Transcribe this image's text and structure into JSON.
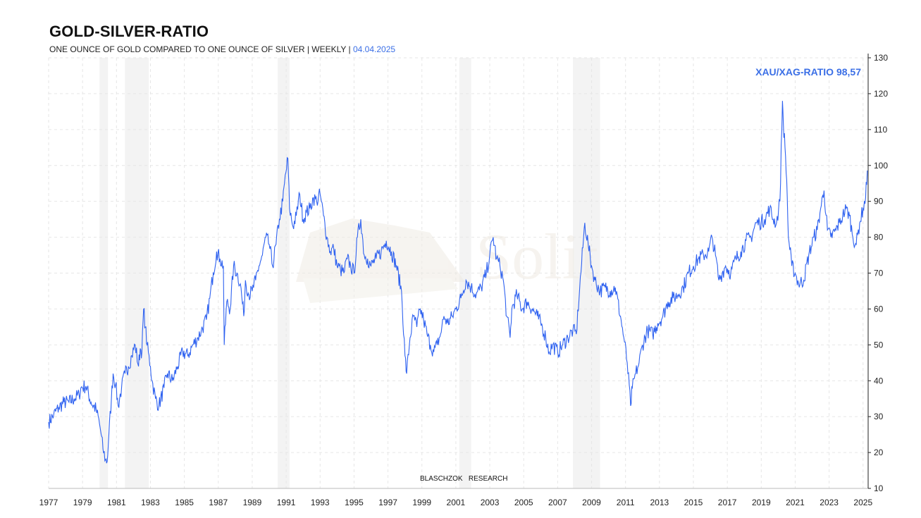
{
  "header": {
    "title": "GOLD-SILVER-RATIO",
    "subtitle": "ONE OUNCE OF GOLD COMPARED TO ONE OUNCE OF SILVER | WEEKLY |",
    "date": "04.04.2025"
  },
  "watermark": {
    "brand": "Solit",
    "credit": "BLASCHZOK   RESEARCH"
  },
  "colors": {
    "line": "#2f62f0",
    "label": "#3b6fe6",
    "shade": "#eeeeee",
    "grid": "#e6e6e6"
  },
  "chart_data": {
    "type": "line",
    "title": "GOLD-SILVER-RATIO",
    "current_label": "XAU/XAG-RATIO 98,57",
    "current_value": 98.57,
    "xlim": [
      1977.0,
      2025.3
    ],
    "ylim": [
      10,
      130
    ],
    "y_ticks": [
      130,
      120,
      110,
      100,
      90,
      80,
      70,
      60,
      50,
      40,
      30,
      20,
      10
    ],
    "x_ticks": [
      "1977",
      "1979",
      "1981",
      "1983",
      "1985",
      "1987",
      "1989",
      "1991",
      "1993",
      "1995",
      "1997",
      "1999",
      "2001",
      "2003",
      "2005",
      "2007",
      "2009",
      "2011",
      "2013",
      "2015",
      "2017",
      "2019",
      "2021",
      "2023",
      "2025"
    ],
    "grid": true,
    "y_axis_position": "right",
    "shaded_periods": [
      [
        1980.0,
        1980.5
      ],
      [
        1981.5,
        1982.9
      ],
      [
        1990.5,
        1991.2
      ],
      [
        2001.2,
        2001.9
      ],
      [
        2007.9,
        2009.5
      ]
    ],
    "series": [
      {
        "values": [
          [
            1977.0,
            28.5
          ],
          [
            1977.3,
            30.5
          ],
          [
            1977.6,
            32.5
          ],
          [
            1977.9,
            34
          ],
          [
            1978.2,
            34
          ],
          [
            1978.5,
            35
          ],
          [
            1978.8,
            36
          ],
          [
            1978.9,
            38
          ],
          [
            1979.2,
            38.5
          ],
          [
            1979.5,
            34
          ],
          [
            1979.8,
            32
          ],
          [
            1980.0,
            28
          ],
          [
            1980.1,
            25
          ],
          [
            1980.2,
            21
          ],
          [
            1980.35,
            18
          ],
          [
            1980.45,
            17.5
          ],
          [
            1980.55,
            25
          ],
          [
            1980.7,
            35
          ],
          [
            1980.8,
            42
          ],
          [
            1980.95,
            39
          ],
          [
            1981.1,
            33
          ],
          [
            1981.3,
            38
          ],
          [
            1981.5,
            42
          ],
          [
            1981.7,
            44
          ],
          [
            1981.9,
            47
          ],
          [
            1982.1,
            50
          ],
          [
            1982.3,
            44
          ],
          [
            1982.4,
            49
          ],
          [
            1982.5,
            48
          ],
          [
            1982.6,
            60
          ],
          [
            1982.7,
            55
          ],
          [
            1982.8,
            50
          ],
          [
            1983.0,
            44
          ],
          [
            1983.1,
            40
          ],
          [
            1983.3,
            35
          ],
          [
            1983.5,
            33
          ],
          [
            1983.8,
            38
          ],
          [
            1984.0,
            42
          ],
          [
            1984.3,
            40
          ],
          [
            1984.6,
            44
          ],
          [
            1984.9,
            48
          ],
          [
            1985.2,
            47
          ],
          [
            1985.5,
            50
          ],
          [
            1985.8,
            52
          ],
          [
            1986.0,
            54
          ],
          [
            1986.3,
            57
          ],
          [
            1986.5,
            63
          ],
          [
            1986.7,
            70
          ],
          [
            1986.9,
            76
          ],
          [
            1987.1,
            74
          ],
          [
            1987.3,
            72
          ],
          [
            1987.35,
            50
          ],
          [
            1987.5,
            62
          ],
          [
            1987.7,
            60
          ],
          [
            1987.9,
            72
          ],
          [
            1988.1,
            70
          ],
          [
            1988.3,
            67
          ],
          [
            1988.5,
            58
          ],
          [
            1988.6,
            68
          ],
          [
            1988.8,
            64
          ],
          [
            1989.0,
            65
          ],
          [
            1989.2,
            68
          ],
          [
            1989.4,
            72
          ],
          [
            1989.6,
            75
          ],
          [
            1989.8,
            80
          ],
          [
            1990.0,
            78
          ],
          [
            1990.2,
            72
          ],
          [
            1990.4,
            78
          ],
          [
            1990.6,
            85
          ],
          [
            1990.8,
            90
          ],
          [
            1990.9,
            95
          ],
          [
            1991.1,
            102
          ],
          [
            1991.2,
            88
          ],
          [
            1991.4,
            83
          ],
          [
            1991.6,
            86
          ],
          [
            1991.8,
            92
          ],
          [
            1992.0,
            85
          ],
          [
            1992.2,
            87
          ],
          [
            1992.4,
            88
          ],
          [
            1992.6,
            91
          ],
          [
            1992.8,
            90
          ],
          [
            1993.0,
            92
          ],
          [
            1993.2,
            86
          ],
          [
            1993.4,
            80
          ],
          [
            1993.6,
            76
          ],
          [
            1993.8,
            77
          ],
          [
            1994.0,
            72
          ],
          [
            1994.2,
            71
          ],
          [
            1994.4,
            70
          ],
          [
            1994.6,
            74
          ],
          [
            1994.8,
            72
          ],
          [
            1995.0,
            70
          ],
          [
            1995.2,
            80
          ],
          [
            1995.4,
            85
          ],
          [
            1995.6,
            75
          ],
          [
            1995.8,
            74
          ],
          [
            1996.0,
            72
          ],
          [
            1996.3,
            74
          ],
          [
            1996.6,
            76
          ],
          [
            1996.9,
            79
          ],
          [
            1997.2,
            76
          ],
          [
            1997.5,
            72
          ],
          [
            1997.8,
            65
          ],
          [
            1998.0,
            47
          ],
          [
            1998.1,
            42
          ],
          [
            1998.3,
            52
          ],
          [
            1998.5,
            58
          ],
          [
            1998.7,
            55
          ],
          [
            1998.9,
            60
          ],
          [
            1999.1,
            57
          ],
          [
            1999.3,
            53
          ],
          [
            1999.5,
            50
          ],
          [
            1999.7,
            48
          ],
          [
            1999.9,
            50
          ],
          [
            2000.1,
            53
          ],
          [
            2000.3,
            58
          ],
          [
            2000.5,
            56
          ],
          [
            2000.8,
            58
          ],
          [
            2001.0,
            60
          ],
          [
            2001.3,
            63
          ],
          [
            2001.6,
            68
          ],
          [
            2001.9,
            66
          ],
          [
            2002.2,
            64
          ],
          [
            2002.5,
            66
          ],
          [
            2002.8,
            70
          ],
          [
            2003.0,
            75
          ],
          [
            2003.2,
            80
          ],
          [
            2003.4,
            74
          ],
          [
            2003.6,
            72
          ],
          [
            2003.8,
            68
          ],
          [
            2004.0,
            58
          ],
          [
            2004.2,
            52
          ],
          [
            2004.3,
            60
          ],
          [
            2004.6,
            64
          ],
          [
            2004.9,
            60
          ],
          [
            2005.2,
            62
          ],
          [
            2005.5,
            60
          ],
          [
            2005.8,
            58
          ],
          [
            2006.1,
            55
          ],
          [
            2006.3,
            52
          ],
          [
            2006.5,
            48
          ],
          [
            2006.7,
            50
          ],
          [
            2007.0,
            48
          ],
          [
            2007.3,
            50
          ],
          [
            2007.6,
            52
          ],
          [
            2007.9,
            54
          ],
          [
            2008.1,
            53
          ],
          [
            2008.3,
            66
          ],
          [
            2008.6,
            84
          ],
          [
            2008.8,
            78
          ],
          [
            2009.0,
            72
          ],
          [
            2009.2,
            68
          ],
          [
            2009.5,
            65
          ],
          [
            2009.8,
            66
          ],
          [
            2010.1,
            65
          ],
          [
            2010.4,
            66
          ],
          [
            2010.7,
            58
          ],
          [
            2010.9,
            52
          ],
          [
            2011.1,
            45
          ],
          [
            2011.3,
            33
          ],
          [
            2011.4,
            38
          ],
          [
            2011.6,
            42
          ],
          [
            2011.8,
            45
          ],
          [
            2012.0,
            50
          ],
          [
            2012.3,
            54
          ],
          [
            2012.6,
            53
          ],
          [
            2012.9,
            56
          ],
          [
            2013.2,
            58
          ],
          [
            2013.5,
            62
          ],
          [
            2013.8,
            63
          ],
          [
            2014.1,
            64
          ],
          [
            2014.4,
            66
          ],
          [
            2014.7,
            70
          ],
          [
            2015.0,
            72
          ],
          [
            2015.3,
            74
          ],
          [
            2015.6,
            75
          ],
          [
            2015.9,
            76
          ],
          [
            2016.1,
            80
          ],
          [
            2016.3,
            75
          ],
          [
            2016.5,
            68
          ],
          [
            2016.7,
            70
          ],
          [
            2016.9,
            72
          ],
          [
            2017.2,
            70
          ],
          [
            2017.5,
            74
          ],
          [
            2017.8,
            76
          ],
          [
            2018.1,
            79
          ],
          [
            2018.4,
            80
          ],
          [
            2018.7,
            84
          ],
          [
            2018.9,
            84
          ],
          [
            2019.2,
            85
          ],
          [
            2019.5,
            88
          ],
          [
            2019.7,
            85
          ],
          [
            2019.9,
            84
          ],
          [
            2020.1,
            90
          ],
          [
            2020.25,
            118
          ],
          [
            2020.3,
            112
          ],
          [
            2020.4,
            105
          ],
          [
            2020.5,
            96
          ],
          [
            2020.6,
            80
          ],
          [
            2020.8,
            72
          ],
          [
            2021.0,
            70
          ],
          [
            2021.2,
            67
          ],
          [
            2021.5,
            68
          ],
          [
            2021.8,
            75
          ],
          [
            2022.1,
            80
          ],
          [
            2022.3,
            82
          ],
          [
            2022.5,
            88
          ],
          [
            2022.7,
            93
          ],
          [
            2022.9,
            82
          ],
          [
            2023.1,
            80
          ],
          [
            2023.4,
            82
          ],
          [
            2023.6,
            84
          ],
          [
            2023.8,
            86
          ],
          [
            2024.0,
            88
          ],
          [
            2024.2,
            86
          ],
          [
            2024.4,
            80
          ],
          [
            2024.6,
            78
          ],
          [
            2024.8,
            84
          ],
          [
            2025.0,
            88
          ],
          [
            2025.15,
            91
          ],
          [
            2025.25,
            98.57
          ]
        ]
      }
    ]
  }
}
